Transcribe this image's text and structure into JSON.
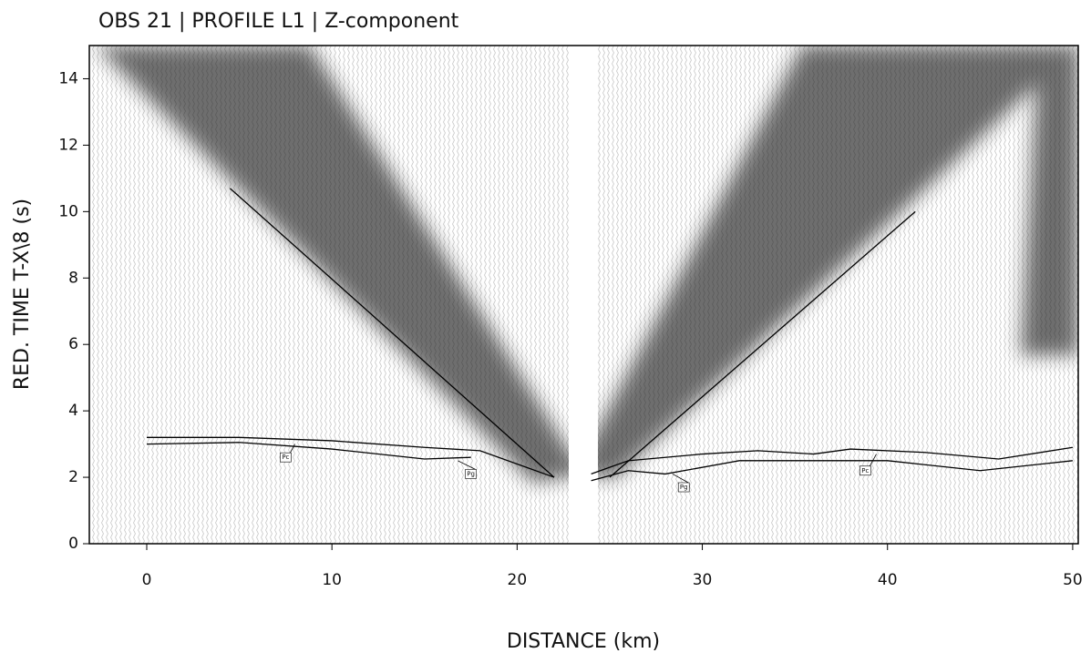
{
  "chart_data": {
    "type": "line",
    "title": "OBS 21 | PROFILE L1 | Z-component",
    "x_label": "DISTANCE (km)",
    "y_label": "RED. TIME T-X\\8 (s)",
    "xlim": [
      -3.1,
      50.3
    ],
    "ylim": [
      0,
      15
    ],
    "xticks": [
      0,
      10,
      20,
      30,
      40,
      50
    ],
    "yticks": [
      0,
      2,
      4,
      6,
      8,
      10,
      12,
      14
    ],
    "grid": false,
    "series": [
      {
        "color": "#000000",
        "x": [
          4.5,
          22
        ],
        "values": [
          10.7,
          2.0
        ]
      },
      {
        "color": "#000000",
        "x": [
          25,
          41.5
        ],
        "values": [
          2.0,
          10.0
        ]
      },
      {
        "color": "#000000",
        "x": [
          0,
          5,
          10,
          15,
          18,
          20,
          22
        ],
        "values": [
          3.2,
          3.2,
          3.1,
          2.9,
          2.8,
          2.4,
          2.0
        ]
      },
      {
        "color": "#000000",
        "x": [
          0,
          5,
          10,
          15,
          17.5
        ],
        "values": [
          3.0,
          3.05,
          2.85,
          2.55,
          2.6
        ]
      },
      {
        "color": "#000000",
        "x": [
          24,
          26,
          30,
          33,
          36,
          38,
          42,
          46,
          50
        ],
        "values": [
          2.1,
          2.5,
          2.7,
          2.8,
          2.7,
          2.85,
          2.75,
          2.55,
          2.9
        ]
      },
      {
        "color": "#000000",
        "x": [
          24,
          26,
          28,
          32,
          35,
          40,
          45,
          50
        ],
        "values": [
          1.9,
          2.2,
          2.1,
          2.5,
          2.5,
          2.5,
          2.2,
          2.5
        ]
      }
    ],
    "annotations": [
      "Pc",
      "Pg",
      "Pg",
      "Pc"
    ]
  }
}
